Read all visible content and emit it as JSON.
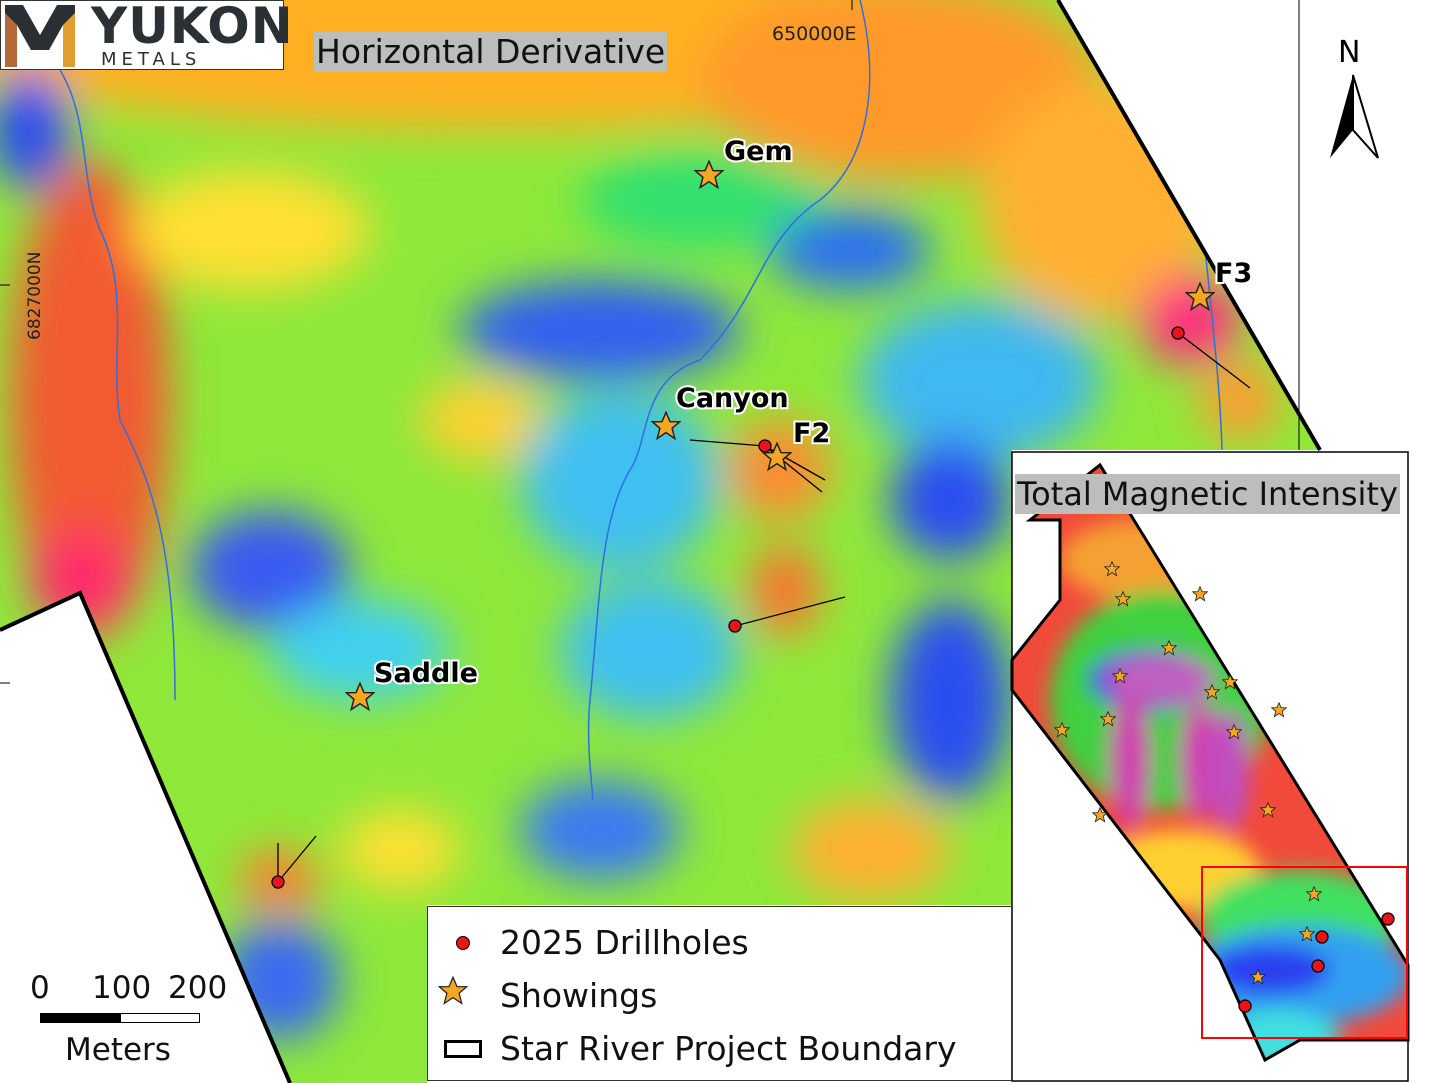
{
  "logo": {
    "name": "YUKON",
    "sub": "METALS"
  },
  "main_map": {
    "title": "Horizontal Derivative",
    "easting_label": "650000E",
    "northing_label": "6827000N",
    "showings": [
      {
        "name": "Gem"
      },
      {
        "name": "Canyon"
      },
      {
        "name": "F2"
      },
      {
        "name": "F3"
      },
      {
        "name": "Saddle"
      }
    ]
  },
  "north_arrow": {
    "label": "N"
  },
  "scale_bar": {
    "ticks": [
      "0",
      "100",
      "200"
    ],
    "unit": "Meters"
  },
  "legend": {
    "items": [
      {
        "label": "2025 Drillholes",
        "symbol": "red-dot"
      },
      {
        "label": "Showings",
        "symbol": "orange-star"
      },
      {
        "label": "Star River Project Boundary",
        "symbol": "black-outline-box"
      }
    ]
  },
  "inset": {
    "title": "Total Magnetic Intensity",
    "extent_box_color": "#ff0000"
  },
  "colors": {
    "drillhole": "#e8141b",
    "showing": "#f5a623",
    "boundary": "#000000",
    "stream": "#2f6fe0"
  }
}
